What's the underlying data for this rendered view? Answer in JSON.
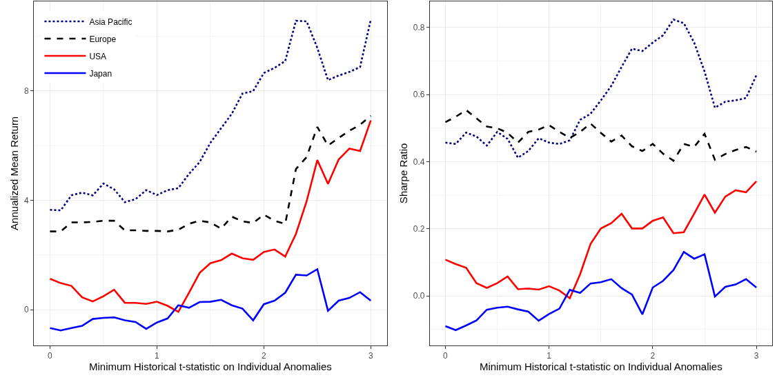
{
  "chart_data": [
    {
      "type": "line",
      "xlabel": "Minimum Historical t-statistic on Individual Anomalies",
      "ylabel": "Annualized Mean Return",
      "x": [
        0,
        0.1,
        0.2,
        0.3,
        0.4,
        0.5,
        0.6,
        0.7,
        0.8,
        0.9,
        1.0,
        1.1,
        1.2,
        1.3,
        1.4,
        1.5,
        1.6,
        1.7,
        1.8,
        1.9,
        2.0,
        2.1,
        2.2,
        2.3,
        2.4,
        2.5,
        2.6,
        2.7,
        2.8,
        2.9,
        3.0
      ],
      "xlim": [
        -0.15,
        3.15
      ],
      "xticks": [
        0,
        1,
        2,
        3
      ],
      "ylim": [
        -1.3,
        11.27
      ],
      "yticks": [
        0,
        4,
        8
      ],
      "grid": true,
      "legend": "top left",
      "series": [
        {
          "name": "Asia Pacific",
          "color": "#000080",
          "line_style": "dotted",
          "values": [
            3.65,
            3.63,
            4.18,
            4.28,
            4.18,
            4.61,
            4.4,
            3.93,
            4.04,
            4.37,
            4.19,
            4.37,
            4.44,
            4.96,
            5.4,
            6.1,
            6.63,
            7.16,
            7.9,
            7.99,
            8.65,
            8.84,
            9.09,
            10.56,
            10.54,
            9.57,
            8.39,
            8.56,
            8.69,
            8.87,
            10.6
          ]
        },
        {
          "name": "Europe",
          "color": "#000000",
          "line_style": "dashed",
          "values": [
            2.86,
            2.86,
            3.19,
            3.19,
            3.21,
            3.25,
            3.25,
            2.9,
            2.9,
            2.88,
            2.88,
            2.86,
            2.92,
            3.14,
            3.25,
            3.19,
            2.96,
            3.4,
            3.23,
            3.17,
            3.47,
            3.25,
            3.14,
            5.14,
            5.58,
            6.68,
            6.0,
            6.28,
            6.54,
            6.76,
            7.09
          ]
        },
        {
          "name": "USA",
          "color": "#ff0000",
          "line_style": "solid",
          "values": [
            1.13,
            0.97,
            0.87,
            0.45,
            0.3,
            0.49,
            0.73,
            0.25,
            0.25,
            0.21,
            0.29,
            0.14,
            -0.08,
            0.62,
            1.35,
            1.7,
            1.81,
            2.05,
            1.88,
            1.82,
            2.11,
            2.2,
            1.94,
            2.77,
            3.96,
            5.47,
            4.6,
            5.49,
            5.89,
            5.8,
            6.92
          ]
        },
        {
          "name": "Japan",
          "color": "#0000ff",
          "line_style": "solid",
          "values": [
            -0.67,
            -0.76,
            -0.67,
            -0.59,
            -0.34,
            -0.3,
            -0.28,
            -0.39,
            -0.45,
            -0.7,
            -0.47,
            -0.32,
            0.16,
            0.07,
            0.28,
            0.29,
            0.36,
            0.16,
            0.04,
            -0.39,
            0.2,
            0.33,
            0.62,
            1.28,
            1.25,
            1.48,
            -0.04,
            0.33,
            0.43,
            0.64,
            0.33
          ]
        }
      ]
    },
    {
      "type": "line",
      "xlabel": "Minimum Historical t-statistic on Individual Anomalies",
      "ylabel": "Sharpe Ratio",
      "x": [
        0,
        0.1,
        0.2,
        0.3,
        0.4,
        0.5,
        0.6,
        0.7,
        0.8,
        0.9,
        1.0,
        1.1,
        1.2,
        1.3,
        1.4,
        1.5,
        1.6,
        1.7,
        1.8,
        1.9,
        2.0,
        2.1,
        2.2,
        2.3,
        2.4,
        2.5,
        2.6,
        2.7,
        2.8,
        2.9,
        3.0
      ],
      "xlim": [
        -0.15,
        3.15
      ],
      "xticks": [
        0,
        1,
        2,
        3
      ],
      "ylim": [
        -0.147,
        0.878
      ],
      "yticks": [
        {
          "value": 0,
          "label": "0.0"
        },
        0.2,
        0.4,
        0.6,
        0.8
      ],
      "grid": true,
      "series": [
        {
          "color": "#000080",
          "line_style": "dotted",
          "values": [
            0.457,
            0.453,
            0.487,
            0.475,
            0.448,
            0.489,
            0.468,
            0.412,
            0.432,
            0.47,
            0.457,
            0.453,
            0.464,
            0.525,
            0.543,
            0.583,
            0.626,
            0.683,
            0.737,
            0.73,
            0.755,
            0.777,
            0.824,
            0.813,
            0.755,
            0.669,
            0.561,
            0.579,
            0.583,
            0.59,
            0.658
          ]
        },
        {
          "color": "#000000",
          "line_style": "dashed",
          "values": [
            0.518,
            0.534,
            0.554,
            0.529,
            0.505,
            0.5,
            0.486,
            0.457,
            0.489,
            0.496,
            0.509,
            0.489,
            0.471,
            0.489,
            0.514,
            0.486,
            0.46,
            0.478,
            0.446,
            0.432,
            0.453,
            0.424,
            0.403,
            0.453,
            0.444,
            0.483,
            0.406,
            0.423,
            0.435,
            0.444,
            0.43
          ]
        },
        {
          "color": "#ff0000",
          "line_style": "solid",
          "values": [
            0.108,
            0.095,
            0.084,
            0.038,
            0.024,
            0.038,
            0.058,
            0.02,
            0.022,
            0.019,
            0.029,
            0.016,
            -0.007,
            0.065,
            0.155,
            0.201,
            0.217,
            0.245,
            0.201,
            0.201,
            0.224,
            0.234,
            0.187,
            0.19,
            0.245,
            0.302,
            0.248,
            0.296,
            0.315,
            0.309,
            0.342
          ]
        },
        {
          "color": "#0000ff",
          "line_style": "solid",
          "values": [
            -0.09,
            -0.102,
            -0.088,
            -0.073,
            -0.041,
            -0.035,
            -0.032,
            -0.04,
            -0.047,
            -0.074,
            -0.054,
            -0.038,
            0.018,
            0.009,
            0.037,
            0.041,
            0.05,
            0.023,
            0.004,
            -0.055,
            0.025,
            0.045,
            0.077,
            0.131,
            0.111,
            0.124,
            -0.002,
            0.027,
            0.034,
            0.05,
            0.025
          ]
        }
      ]
    }
  ]
}
